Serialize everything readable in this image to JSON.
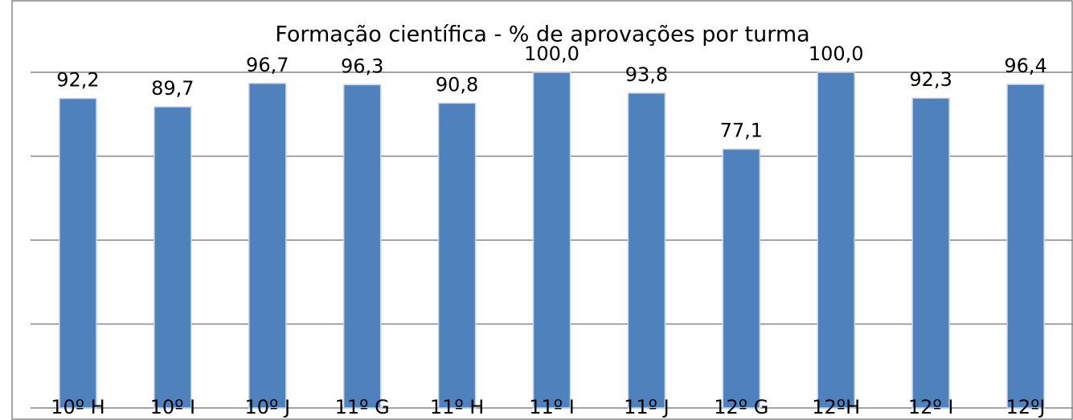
{
  "chart_data": {
    "type": "bar",
    "title": "Formação científica - % de aprovações por turma",
    "categories": [
      "10º H",
      "10º I",
      "10º J",
      "11º G",
      "11º H",
      "11º I",
      "11º J",
      "12º G",
      "12ºH",
      "12º I",
      "12ºJ"
    ],
    "values": [
      92.2,
      89.7,
      96.7,
      96.3,
      90.8,
      100.0,
      93.8,
      77.1,
      100.0,
      92.3,
      96.4
    ],
    "value_labels": [
      "92,2",
      "89,7",
      "96,7",
      "96,3",
      "90,8",
      "100,0",
      "93,8",
      "77,1",
      "100,0",
      "92,3",
      "96,4"
    ],
    "color": "#4f81bd",
    "ylim": [
      0,
      100
    ],
    "yticks": [
      0,
      25,
      50,
      75,
      100
    ],
    "grid": true
  }
}
